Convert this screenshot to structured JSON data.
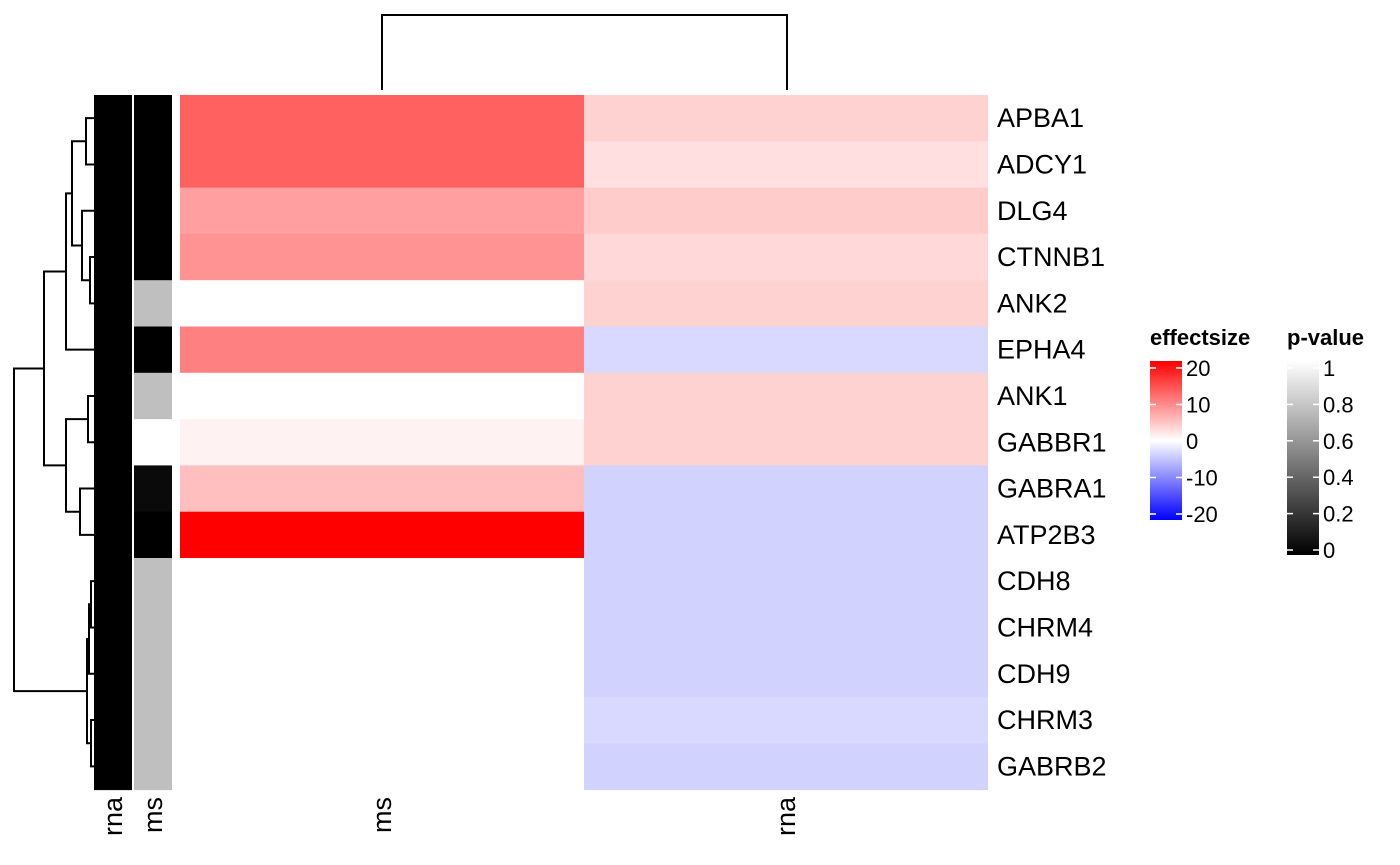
{
  "chart_data": {
    "type": "heatmap",
    "rows": [
      "APBA1",
      "ADCY1",
      "DLG4",
      "CTNNB1",
      "ANK2",
      "EPHA4",
      "ANK1",
      "GABBR1",
      "GABRA1",
      "ATP2B3",
      "CDH8",
      "CHRM4",
      "CDH9",
      "CHRM3",
      "GABRB2"
    ],
    "columns": [
      "ms",
      "rna"
    ],
    "values": [
      [
        12.5,
        3.5
      ],
      [
        12.5,
        2.5
      ],
      [
        7.5,
        4.0
      ],
      [
        8.5,
        3.0
      ],
      [
        null,
        3.5
      ],
      [
        10.0,
        -3.0
      ],
      [
        null,
        3.5
      ],
      [
        1.0,
        3.5
      ],
      [
        5.0,
        -3.5
      ],
      [
        20.0,
        -3.5
      ],
      [
        null,
        -3.5
      ],
      [
        null,
        -3.5
      ],
      [
        null,
        -3.5
      ],
      [
        null,
        -3.0
      ],
      [
        null,
        -3.5
      ]
    ],
    "row_annotation": {
      "columns": [
        "rna",
        "ms"
      ],
      "values": [
        [
          0,
          0
        ],
        [
          0,
          0
        ],
        [
          0,
          0
        ],
        [
          0,
          0
        ],
        [
          0,
          0.75
        ],
        [
          0,
          0
        ],
        [
          0,
          0.75
        ],
        [
          0,
          1
        ],
        [
          0,
          0.04
        ],
        [
          0,
          0
        ],
        [
          0,
          0.75
        ],
        [
          0,
          0.75
        ],
        [
          0,
          0.75
        ],
        [
          0,
          0.75
        ],
        [
          0,
          0.75
        ]
      ]
    },
    "legends": [
      {
        "title": "effectsize",
        "ticks": [
          20,
          10,
          0,
          -10,
          -20
        ],
        "range": [
          -20,
          20
        ],
        "colors": [
          "#0000ff",
          "#ffffff",
          "#ff0000"
        ]
      },
      {
        "title": "p-value",
        "ticks": [
          1,
          0.8,
          0.6,
          0.4,
          0.2,
          0
        ],
        "range": [
          0,
          1
        ],
        "colors": [
          "#000000",
          "#ffffff"
        ]
      }
    ]
  }
}
